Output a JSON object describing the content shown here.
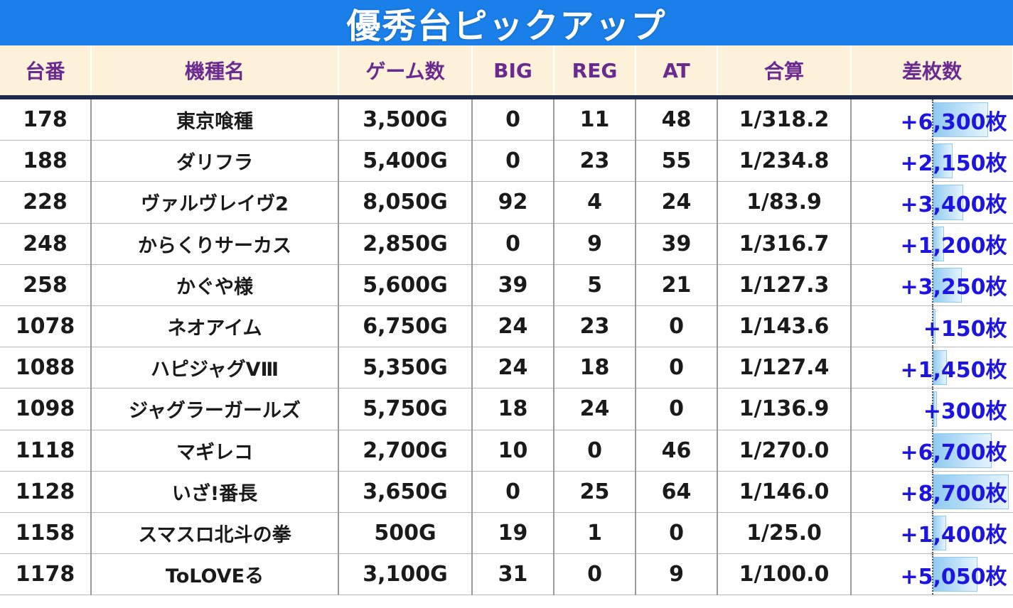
{
  "title": "優秀台ピックアップ",
  "headers": [
    "台番",
    "機種名",
    "ゲーム数",
    "BIG",
    "REG",
    "AT",
    "合算",
    "差枚数"
  ],
  "diff_max": 8700,
  "rows": [
    {
      "no": "178",
      "name": "東京喰種",
      "games": "3,500G",
      "big": "0",
      "reg": "11",
      "at": "48",
      "total": "1/318.2",
      "diff": "+6,300枚",
      "diff_value": 6300
    },
    {
      "no": "188",
      "name": "ダリフラ",
      "games": "5,400G",
      "big": "0",
      "reg": "23",
      "at": "55",
      "total": "1/234.8",
      "diff": "+2,150枚",
      "diff_value": 2150
    },
    {
      "no": "228",
      "name": "ヴァルヴレイヴ2",
      "games": "8,050G",
      "big": "92",
      "reg": "4",
      "at": "24",
      "total": "1/83.9",
      "diff": "+3,400枚",
      "diff_value": 3400
    },
    {
      "no": "248",
      "name": "からくりサーカス",
      "games": "2,850G",
      "big": "0",
      "reg": "9",
      "at": "39",
      "total": "1/316.7",
      "diff": "+1,200枚",
      "diff_value": 1200
    },
    {
      "no": "258",
      "name": "かぐや様",
      "games": "5,600G",
      "big": "39",
      "reg": "5",
      "at": "21",
      "total": "1/127.3",
      "diff": "+3,250枚",
      "diff_value": 3250
    },
    {
      "no": "1078",
      "name": "ネオアイム",
      "games": "6,750G",
      "big": "24",
      "reg": "23",
      "at": "0",
      "total": "1/143.6",
      "diff": "+150枚",
      "diff_value": 150
    },
    {
      "no": "1088",
      "name": "ハピジャグVⅢ",
      "games": "5,350G",
      "big": "24",
      "reg": "18",
      "at": "0",
      "total": "1/127.4",
      "diff": "+1,450枚",
      "diff_value": 1450
    },
    {
      "no": "1098",
      "name": "ジャグラーガールズ",
      "games": "5,750G",
      "big": "18",
      "reg": "24",
      "at": "0",
      "total": "1/136.9",
      "diff": "+300枚",
      "diff_value": 300
    },
    {
      "no": "1118",
      "name": "マギレコ",
      "games": "2,700G",
      "big": "10",
      "reg": "0",
      "at": "46",
      "total": "1/270.0",
      "diff": "+6,700枚",
      "diff_value": 6700
    },
    {
      "no": "1128",
      "name": "いざ!番長",
      "games": "3,650G",
      "big": "0",
      "reg": "25",
      "at": "64",
      "total": "1/146.0",
      "diff": "+8,700枚",
      "diff_value": 8700
    },
    {
      "no": "1158",
      "name": "スマスロ北斗の拳",
      "games": "500G",
      "big": "19",
      "reg": "1",
      "at": "0",
      "total": "1/25.0",
      "diff": "+1,400枚",
      "diff_value": 1400
    },
    {
      "no": "1178",
      "name": "ToLOVEる",
      "games": "3,100G",
      "big": "31",
      "reg": "0",
      "at": "9",
      "total": "1/100.0",
      "diff": "+5,050枚",
      "diff_value": 5050
    }
  ]
}
